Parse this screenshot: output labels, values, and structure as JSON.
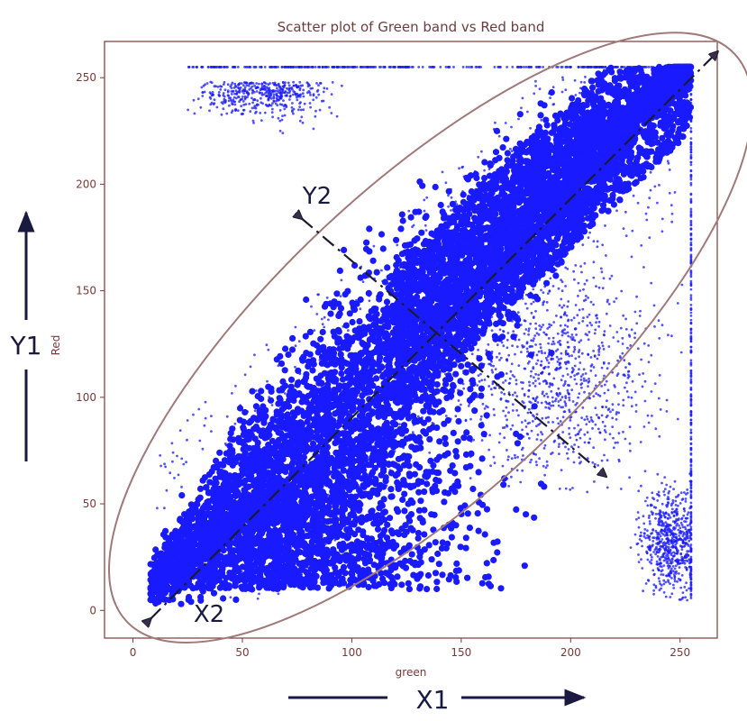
{
  "chart_data": {
    "type": "scatter",
    "title": "Scatter plot of Green band vs Red band",
    "xlabel": "green",
    "ylabel": "Red",
    "xlim": [
      -13,
      267
    ],
    "ylim": [
      -13,
      267
    ],
    "xticks": [
      0,
      50,
      100,
      150,
      200,
      250
    ],
    "yticks": [
      0,
      50,
      100,
      150,
      200,
      250
    ],
    "grid": false,
    "colors": {
      "points": "#1a1aff",
      "ellipse": "#a07a78",
      "axes": "#7a3838",
      "annotations": "#1a1a40"
    },
    "series": [
      {
        "clusters": [
          {
            "region": "main diagonal band",
            "x_range": [
              5,
              255
            ],
            "y_range": [
              5,
              255
            ],
            "approx_relation": "y ≈ x"
          },
          {
            "region": "top-left cluster",
            "x_range": [
              25,
              125
            ],
            "y_range": [
              230,
              255
            ],
            "center": [
              60,
              245
            ]
          },
          {
            "region": "bottom-right cluster",
            "x_range": [
              225,
              255
            ],
            "y_range": [
              10,
              70
            ],
            "center": [
              245,
              32
            ]
          },
          {
            "region": "lower-right lobe",
            "x_range": [
              150,
              250
            ],
            "y_range": [
              60,
              180
            ],
            "center": [
              195,
              110
            ]
          }
        ]
      }
    ],
    "annotations": {
      "ellipse": {
        "center": [
          136,
          128
        ],
        "semi_major": 190,
        "semi_minor": 70,
        "angle_deg": 43
      },
      "axis_x2": {
        "label": "X2",
        "from": [
          8,
          -4
        ],
        "to": [
          267,
          262
        ]
      },
      "axis_y2": {
        "label": "Y2",
        "from": [
          77,
          184
        ],
        "to": [
          216,
          63
        ]
      }
    }
  },
  "outer_labels": {
    "x1": "X1",
    "y1": "Y1"
  }
}
